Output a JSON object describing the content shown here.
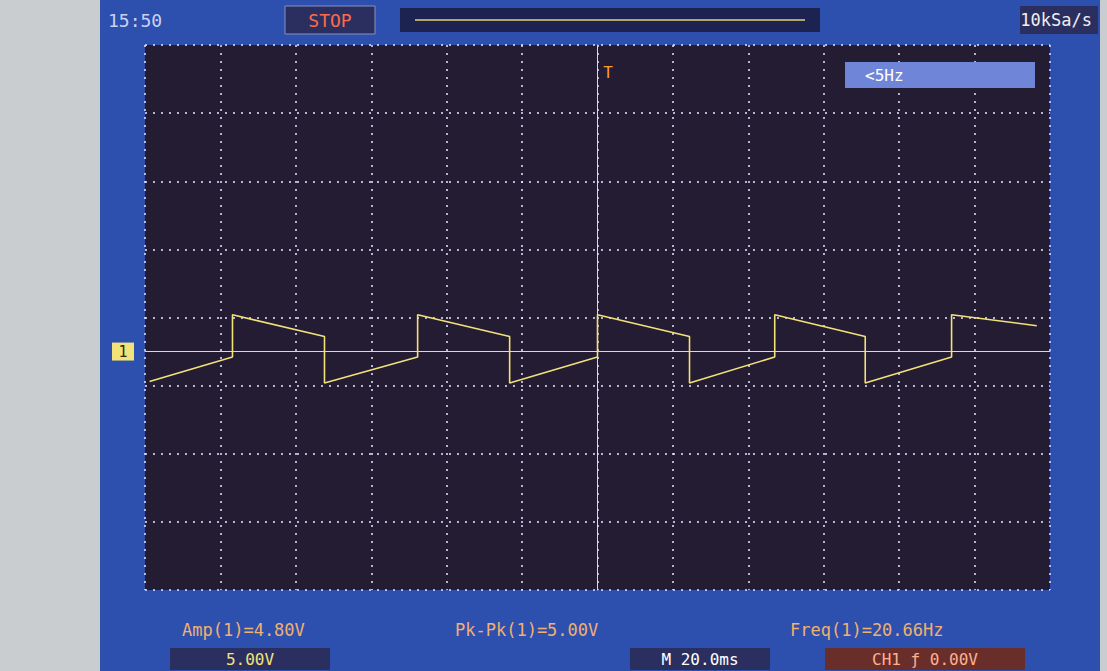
{
  "chart_data": {
    "type": "line",
    "x": [
      -118.8,
      -96.8,
      -96.8,
      -72.4,
      -72.4,
      -47.7,
      -47.7,
      -23.3,
      -23.3,
      0,
      0,
      24.4,
      24.4,
      47,
      47,
      71,
      71,
      93.9,
      93.9,
      116.5
    ],
    "values": [
      -2.2,
      -0.4,
      2.7,
      1.1,
      -2.3,
      -0.4,
      2.7,
      1.1,
      -2.3,
      -0.4,
      2.7,
      1.1,
      -2.3,
      -0.4,
      2.7,
      1.1,
      -2.3,
      -0.4,
      2.7,
      1.9
    ],
    "color": "#f2e27a",
    "xlim": [
      -120,
      120
    ],
    "xticks": [
      -120,
      -100,
      -80,
      -60,
      -40,
      -20,
      0,
      20,
      40,
      60,
      80,
      100,
      120
    ],
    "ylim": [
      -17.5,
      22.5
    ],
    "yticks": [
      -17.5,
      -12.5,
      -7.5,
      -2.5,
      2.5,
      7.5,
      12.5,
      17.5,
      22.5
    ],
    "grid": true,
    "tick_labels": false,
    "annotations": [
      "15:50",
      "STOP",
      "10kSa/s",
      "<5Hz",
      "T",
      "1",
      "Amp(1)=4.80V",
      "Pk-Pk(1)=5.00V",
      "Freq(1)=20.66Hz",
      "5.00V",
      "M 20.0ms",
      "CH1 ƒ 0.00V"
    ]
  }
}
